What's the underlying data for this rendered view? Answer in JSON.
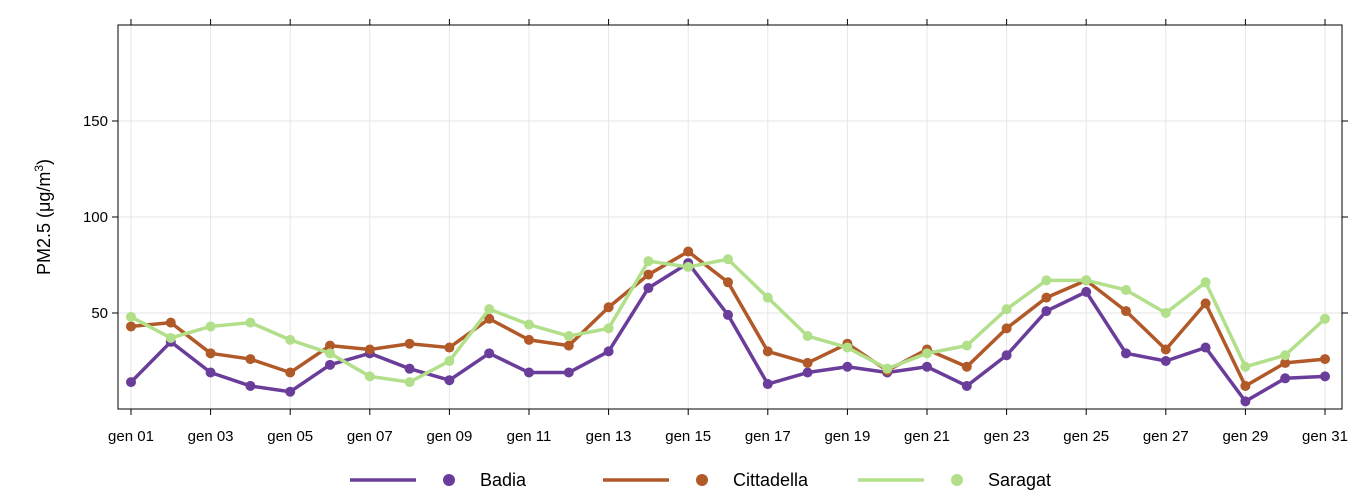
{
  "chart_data": {
    "type": "line",
    "title": "",
    "xlabel": "",
    "ylabel": "PM2.5 (μg/m³)",
    "ylabel_parts": {
      "main": "PM2.5 (μg/m",
      "sup": "3",
      "close": ")"
    },
    "x": [
      "gen 01",
      "gen 02",
      "gen 03",
      "gen 04",
      "gen 05",
      "gen 06",
      "gen 07",
      "gen 08",
      "gen 09",
      "gen 10",
      "gen 11",
      "gen 12",
      "gen 13",
      "gen 14",
      "gen 15",
      "gen 16",
      "gen 17",
      "gen 18",
      "gen 19",
      "gen 20",
      "gen 21",
      "gen 22",
      "gen 23",
      "gen 24",
      "gen 25",
      "gen 26",
      "gen 27",
      "gen 28",
      "gen 29",
      "gen 30",
      "gen 31"
    ],
    "x_tick_labels": [
      "gen 01",
      "gen 03",
      "gen 05",
      "gen 07",
      "gen 09",
      "gen 11",
      "gen 13",
      "gen 15",
      "gen 17",
      "gen 19",
      "gen 21",
      "gen 23",
      "gen 25",
      "gen 27",
      "gen 29",
      "gen 31"
    ],
    "y_ticks": [
      50,
      100,
      150
    ],
    "ylim": [
      0,
      200
    ],
    "grid": true,
    "legend_position": "bottom",
    "series": [
      {
        "name": "Badia",
        "color": "#6a3d9a",
        "values": [
          14,
          35,
          19,
          12,
          9,
          23,
          29,
          21,
          15,
          29,
          19,
          19,
          30,
          63,
          76,
          49,
          13,
          19,
          22,
          19,
          22,
          12,
          28,
          51,
          61,
          29,
          25,
          32,
          4,
          16,
          17
        ]
      },
      {
        "name": "Cittadella",
        "color": "#b15928",
        "values": [
          43,
          45,
          29,
          26,
          19,
          33,
          31,
          34,
          32,
          47,
          36,
          33,
          53,
          70,
          82,
          66,
          30,
          24,
          34,
          20,
          31,
          22,
          42,
          58,
          67,
          51,
          31,
          55,
          12,
          24,
          26
        ]
      },
      {
        "name": "Saragat",
        "color": "#b2df8a",
        "values": [
          48,
          37,
          43,
          45,
          36,
          29,
          17,
          14,
          25,
          52,
          44,
          38,
          42,
          77,
          74,
          78,
          58,
          38,
          32,
          21,
          29,
          33,
          52,
          67,
          67,
          62,
          50,
          66,
          22,
          28,
          47
        ]
      }
    ]
  }
}
